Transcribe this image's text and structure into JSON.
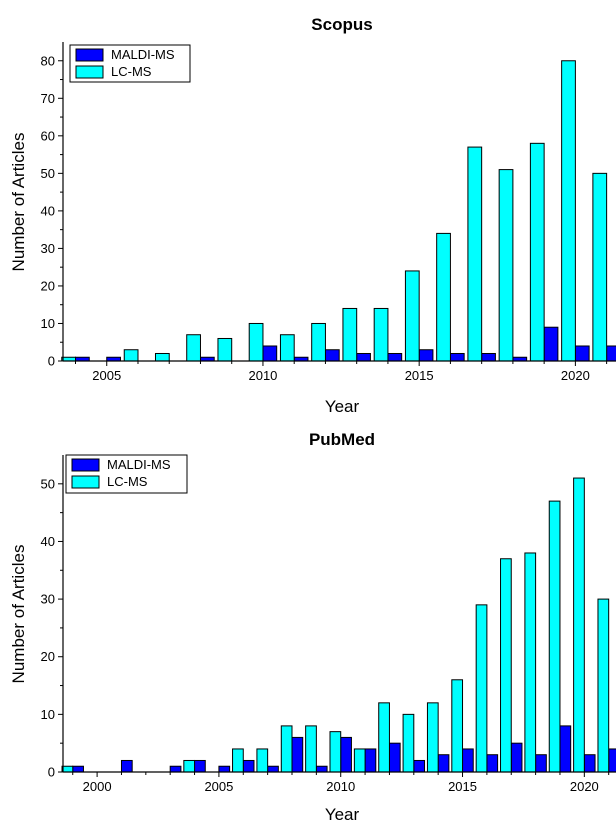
{
  "colors": {
    "maldi": "#0000ff",
    "lcms": "#00ffff",
    "outline": "#000000"
  },
  "chart_data": [
    {
      "type": "bar",
      "title": "Scopus",
      "xlabel": "Year",
      "ylabel": "Number of Articles",
      "xlim": [
        2003.6,
        2021.3
      ],
      "ylim": [
        0,
        85
      ],
      "legend": "top-left",
      "xticks_major": [
        2005,
        2010,
        2015,
        2020
      ],
      "yticks_major": [
        0,
        10,
        20,
        30,
        40,
        50,
        60,
        70,
        80
      ],
      "x": [
        2004,
        2005,
        2006,
        2007,
        2008,
        2009,
        2010,
        2011,
        2012,
        2013,
        2014,
        2015,
        2016,
        2017,
        2018,
        2019,
        2020,
        2021
      ],
      "series": [
        {
          "name": "MALDI-MS",
          "values": [
            1,
            1,
            0,
            0,
            1,
            0,
            4,
            1,
            3,
            2,
            2,
            3,
            2,
            2,
            1,
            9,
            4,
            4
          ]
        },
        {
          "name": "LC-MS",
          "values": [
            1,
            0,
            3,
            2,
            7,
            6,
            10,
            7,
            10,
            14,
            14,
            24,
            34,
            57,
            51,
            58,
            80,
            50
          ]
        }
      ]
    },
    {
      "type": "bar",
      "title": "PubMed",
      "xlabel": "Year",
      "ylabel": "Number of Articles",
      "xlim": [
        1998.6,
        2021.3
      ],
      "ylim": [
        0,
        55
      ],
      "legend": "top-left",
      "xticks_major": [
        2000,
        2005,
        2010,
        2015,
        2020
      ],
      "yticks_major": [
        0,
        10,
        20,
        30,
        40,
        50
      ],
      "x": [
        1999,
        2000,
        2001,
        2002,
        2003,
        2004,
        2005,
        2006,
        2007,
        2008,
        2009,
        2010,
        2011,
        2012,
        2013,
        2014,
        2015,
        2016,
        2017,
        2018,
        2019,
        2020,
        2021
      ],
      "series": [
        {
          "name": "MALDI-MS",
          "values": [
            1,
            0,
            2,
            0,
            1,
            2,
            1,
            2,
            1,
            6,
            1,
            6,
            4,
            5,
            2,
            3,
            4,
            3,
            5,
            3,
            8,
            3,
            4
          ]
        },
        {
          "name": "LC-MS",
          "values": [
            1,
            0,
            0,
            0,
            0,
            2,
            0,
            4,
            4,
            8,
            8,
            7,
            4,
            12,
            10,
            12,
            16,
            29,
            37,
            38,
            47,
            51,
            30
          ]
        }
      ]
    }
  ]
}
